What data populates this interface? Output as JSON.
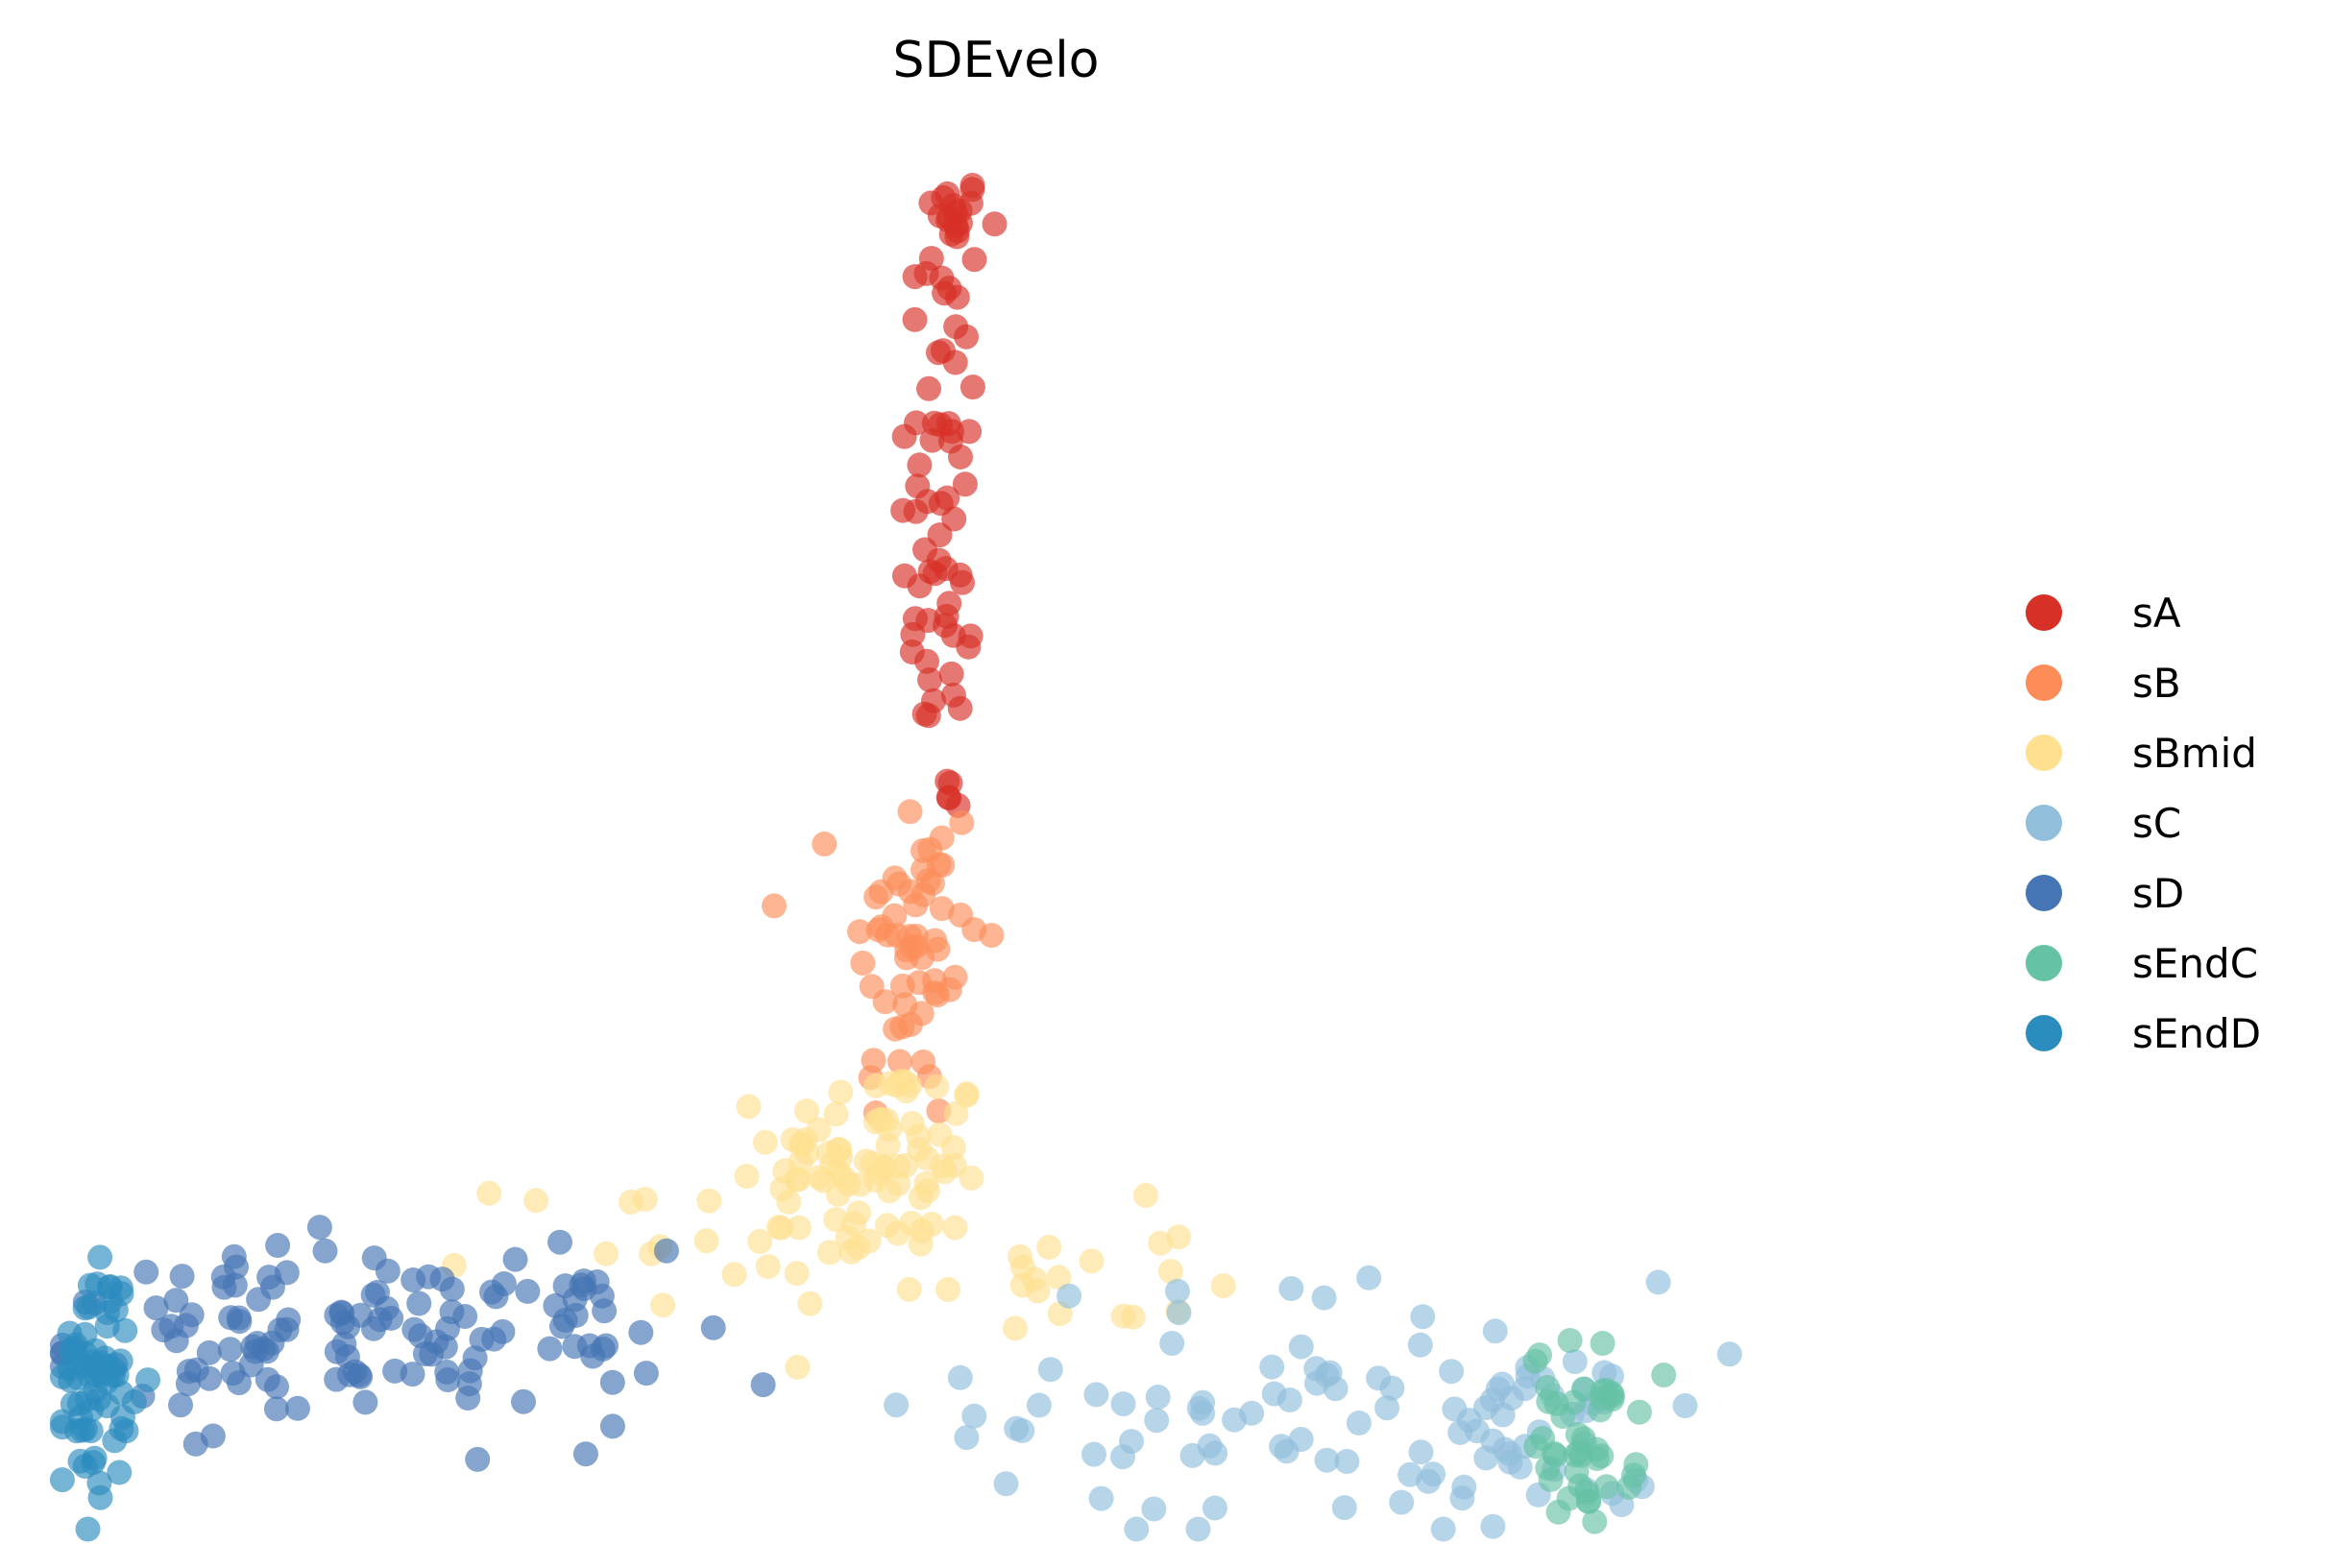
{
  "chart_data": {
    "type": "scatter",
    "title": "SDEvelo",
    "xlabel": "",
    "ylabel": "",
    "axes_visible": false,
    "grid": false,
    "legend_position": "right",
    "xlim": [
      0,
      100
    ],
    "ylim": [
      0,
      100
    ],
    "point_alpha": 0.65,
    "series": [
      {
        "name": "sA",
        "color": "#d73027",
        "clusters": [
          {
            "cx": 47.3,
            "cy": 92.6,
            "sx": 0.8,
            "sy": 1.2,
            "n": 16
          },
          {
            "cx": 46.8,
            "cy": 72.0,
            "sx": 1.1,
            "sy": 12.0,
            "n": 70
          }
        ]
      },
      {
        "name": "sB",
        "color": "#fc8d59",
        "clusters": [
          {
            "cx": 45.2,
            "cy": 41.0,
            "sx": 1.8,
            "sy": 6.5,
            "n": 60
          }
        ]
      },
      {
        "name": "sBmid",
        "color": "#fee090",
        "clusters": [
          {
            "cx": 43.5,
            "cy": 26.5,
            "sx": 2.8,
            "sy": 3.5,
            "n": 75
          },
          {
            "cx": 36.0,
            "cy": 21.0,
            "sx": 6.0,
            "sy": 2.5,
            "n": 30
          },
          {
            "cx": 52.0,
            "cy": 18.0,
            "sx": 4.0,
            "sy": 2.5,
            "n": 20
          }
        ]
      },
      {
        "name": "sC",
        "color": "#91bfdb",
        "clusters": [
          {
            "cx": 67.0,
            "cy": 9.0,
            "sx": 9.0,
            "sy": 4.5,
            "n": 80
          },
          {
            "cx": 78.0,
            "cy": 6.5,
            "sx": 3.0,
            "sy": 3.5,
            "n": 30
          }
        ]
      },
      {
        "name": "sD",
        "color": "#4575b4",
        "clusters": [
          {
            "cx": 15.0,
            "cy": 14.0,
            "sx": 8.0,
            "sy": 3.0,
            "n": 120
          },
          {
            "cx": 28.0,
            "cy": 14.0,
            "sx": 3.5,
            "sy": 3.0,
            "n": 20
          }
        ]
      },
      {
        "name": "sEndC",
        "color": "#66c2a5",
        "clusters": [
          {
            "cx": 80.5,
            "cy": 7.0,
            "sx": 1.4,
            "sy": 3.2,
            "n": 45
          }
        ]
      },
      {
        "name": "sEndD",
        "color": "#2b8cbe",
        "clusters": [
          {
            "cx": 2.3,
            "cy": 11.5,
            "sx": 0.9,
            "sy": 4.0,
            "n": 70
          }
        ]
      }
    ]
  }
}
